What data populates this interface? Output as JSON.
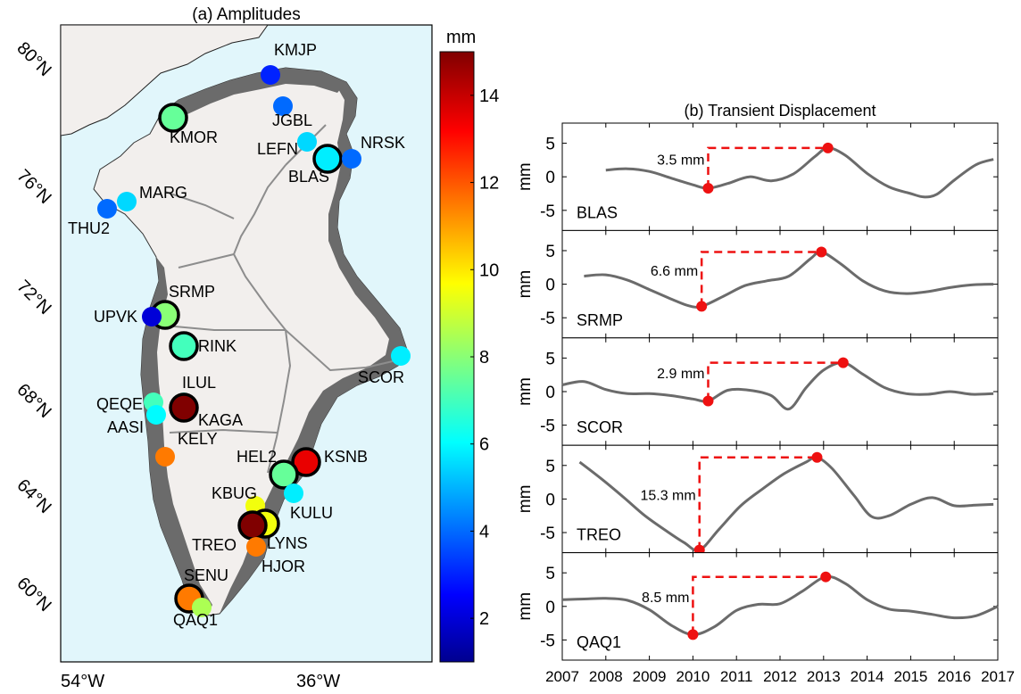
{
  "colors": {
    "ocean": "#e1f6fb",
    "land": "#f2efed",
    "coast_rock": "#6b6b6b",
    "basin_line": "#8d8d8d",
    "series_line": "#6b6b6b",
    "marker": "#ee1111",
    "dash": "#ee1111"
  },
  "chart_data": [
    {
      "type": "map-scatter",
      "title": "(a) Amplitudes",
      "colorbar": {
        "label": "mm",
        "range": [
          1,
          15
        ],
        "ticks": [
          2,
          4,
          6,
          8,
          10,
          12,
          14
        ],
        "colormap": "jet"
      },
      "lat_labels": [
        "80°N",
        "76°N",
        "72°N",
        "68°N",
        "64°N",
        "60°N"
      ],
      "lon_labels": [
        "54°W",
        "36°W"
      ],
      "stations": [
        {
          "name": "KMJP",
          "lat": 79.4,
          "lon": -44.3,
          "amp": 3.0,
          "selected": false
        },
        {
          "name": "JGBL",
          "lat": 78.3,
          "lon": -43.8,
          "amp": 4.0,
          "selected": false
        },
        {
          "name": "KMOR",
          "lat": 78.0,
          "lon": -55.5,
          "amp": 7.5,
          "selected": true
        },
        {
          "name": "LEFN",
          "lat": 77.1,
          "lon": -41.0,
          "amp": 5.5,
          "selected": false
        },
        {
          "name": "BLAS",
          "lat": 76.6,
          "lon": -38.1,
          "amp": 5.8,
          "selected": true
        },
        {
          "name": "NRSK",
          "lat": 76.6,
          "lon": -36.3,
          "amp": 4.0,
          "selected": false
        },
        {
          "name": "MARG",
          "lat": 75.2,
          "lon": -58.8,
          "amp": 5.5,
          "selected": false
        },
        {
          "name": "THU2",
          "lat": 74.9,
          "lon": -60.1,
          "amp": 4.0,
          "selected": false
        },
        {
          "name": "SRMP",
          "lat": 71.3,
          "lon": -56.4,
          "amp": 8.0,
          "selected": true
        },
        {
          "name": "UPVK",
          "lat": 71.3,
          "lon": -57.3,
          "amp": 2.0,
          "selected": false
        },
        {
          "name": "RINK",
          "lat": 70.3,
          "lon": -54.7,
          "amp": 7.0,
          "selected": true
        },
        {
          "name": "SCOR",
          "lat": 69.6,
          "lon": -30.3,
          "amp": 5.8,
          "selected": false
        },
        {
          "name": "ILUL",
          "lat": 68.3,
          "lon": -55.3,
          "amp": 6.5,
          "selected": false
        },
        {
          "name": "KAGA",
          "lat": 67.9,
          "lon": -54.7,
          "amp": 15.0,
          "selected": true
        },
        {
          "name": "QEQE",
          "lat": 68.1,
          "lon": -56.3,
          "amp": 7.0,
          "selected": false
        },
        {
          "name": "AASI",
          "lat": 67.6,
          "lon": -56.1,
          "amp": 6.0,
          "selected": false
        },
        {
          "name": "KELY",
          "lat": 66.2,
          "lon": -55.4,
          "amp": 11.5,
          "selected": false
        },
        {
          "name": "KSNB",
          "lat": 65.9,
          "lon": -38.4,
          "amp": 13.5,
          "selected": true
        },
        {
          "name": "HEL2",
          "lat": 65.4,
          "lon": -40.3,
          "amp": 7.5,
          "selected": true
        },
        {
          "name": "KULU",
          "lat": 64.6,
          "lon": -39.5,
          "amp": 5.8,
          "selected": false
        },
        {
          "name": "KBUG",
          "lat": 64.0,
          "lon": -45.0,
          "amp": 9.5,
          "selected": false
        },
        {
          "name": "LYNS",
          "lat": 63.6,
          "lon": -44.0,
          "amp": 9.5,
          "selected": true
        },
        {
          "name": "TREO",
          "lat": 63.5,
          "lon": -45.2,
          "amp": 15.0,
          "selected": true
        },
        {
          "name": "HJOR",
          "lat": 62.6,
          "lon": -45.6,
          "amp": 11.5,
          "selected": false
        },
        {
          "name": "SENU",
          "lat": 60.2,
          "lon": -50.5,
          "amp": 11.5,
          "selected": true
        },
        {
          "name": "QAQ1",
          "lat": 59.8,
          "lon": -49.6,
          "amp": 8.5,
          "selected": false
        }
      ]
    },
    {
      "type": "line",
      "title": "(b) Transient Displacement",
      "ylabel": "mm",
      "xlim": [
        2007,
        2017
      ],
      "ylim": [
        -8,
        8
      ],
      "yticks": [
        -5,
        0,
        5
      ],
      "xticks": [
        2007,
        2008,
        2009,
        2010,
        2011,
        2012,
        2013,
        2014,
        2015,
        2016,
        2017
      ],
      "panels": [
        {
          "name": "BLAS",
          "annotation": "3.5 mm",
          "x": [
            2008.0,
            2008.5,
            2009.0,
            2009.5,
            2010.0,
            2010.35,
            2010.8,
            2011.3,
            2011.8,
            2012.3,
            2012.8,
            2013.1,
            2013.5,
            2014.0,
            2014.5,
            2015.0,
            2015.3,
            2015.6,
            2016.0,
            2016.5,
            2016.9
          ],
          "y": [
            1.0,
            1.2,
            0.8,
            -0.2,
            -1.2,
            -1.7,
            -1.0,
            0.0,
            -0.6,
            0.4,
            3.0,
            4.3,
            3.2,
            0.5,
            -1.5,
            -2.5,
            -3.0,
            -2.6,
            -0.5,
            1.8,
            2.6
          ],
          "min": [
            2010.35,
            -1.7
          ],
          "max": [
            2013.1,
            4.3
          ]
        },
        {
          "name": "SRMP",
          "annotation": "6.6 mm",
          "x": [
            2007.5,
            2008.0,
            2008.5,
            2009.0,
            2009.5,
            2009.9,
            2010.2,
            2010.7,
            2011.2,
            2011.7,
            2012.2,
            2012.7,
            2012.95,
            2013.4,
            2013.9,
            2014.4,
            2014.9,
            2015.4,
            2015.9,
            2016.4,
            2016.9
          ],
          "y": [
            1.2,
            1.4,
            0.6,
            -0.8,
            -2.2,
            -3.2,
            -3.3,
            -1.8,
            -0.2,
            0.5,
            1.2,
            3.8,
            4.8,
            3.0,
            0.5,
            -1.0,
            -1.4,
            -1.1,
            -0.5,
            -0.1,
            0.0
          ],
          "min": [
            2010.2,
            -3.3
          ],
          "max": [
            2012.95,
            4.8
          ]
        },
        {
          "name": "SCOR",
          "annotation": "2.9 mm",
          "x": [
            2007.0,
            2007.5,
            2008.0,
            2008.5,
            2009.0,
            2009.5,
            2010.0,
            2010.35,
            2010.8,
            2011.3,
            2011.8,
            2012.2,
            2012.6,
            2013.0,
            2013.45,
            2013.9,
            2014.4,
            2014.9,
            2015.4,
            2015.9,
            2016.4,
            2016.9
          ],
          "y": [
            1.0,
            1.5,
            0.3,
            -0.3,
            -0.3,
            -0.6,
            -1.1,
            -1.4,
            0.2,
            0.2,
            -0.6,
            -2.6,
            0.6,
            3.2,
            4.3,
            2.6,
            0.6,
            -0.3,
            -0.4,
            0.0,
            -0.4,
            -0.3
          ],
          "min": [
            2010.35,
            -1.4
          ],
          "max": [
            2013.45,
            4.3
          ]
        },
        {
          "name": "TREO",
          "annotation": "15.3 mm",
          "x": [
            2007.4,
            2007.9,
            2008.4,
            2008.9,
            2009.4,
            2009.8,
            2010.15,
            2010.6,
            2011.1,
            2011.6,
            2012.1,
            2012.6,
            2012.85,
            2013.2,
            2013.7,
            2014.1,
            2014.5,
            2015.0,
            2015.5,
            2016.0,
            2016.5,
            2016.9
          ],
          "y": [
            5.5,
            3.0,
            0.3,
            -2.5,
            -4.8,
            -6.5,
            -7.6,
            -4.5,
            -1.0,
            1.5,
            3.8,
            5.5,
            6.2,
            4.5,
            0.5,
            -2.6,
            -2.5,
            -0.8,
            0.2,
            -1.0,
            -0.9,
            -0.8
          ],
          "min": [
            2010.15,
            -7.6
          ],
          "max": [
            2012.85,
            6.2
          ]
        },
        {
          "name": "QAQ1",
          "annotation": "8.5 mm",
          "x": [
            2007.0,
            2007.5,
            2008.0,
            2008.5,
            2009.0,
            2009.5,
            2010.0,
            2010.5,
            2011.0,
            2011.5,
            2012.0,
            2012.5,
            2013.05,
            2013.5,
            2014.0,
            2014.5,
            2015.0,
            2015.5,
            2016.0,
            2016.5,
            2017.0
          ],
          "y": [
            1.0,
            1.1,
            1.2,
            0.9,
            -0.5,
            -2.8,
            -4.2,
            -3.0,
            -0.6,
            0.3,
            0.4,
            2.2,
            4.4,
            3.4,
            1.0,
            -0.4,
            -0.7,
            -1.2,
            -1.7,
            -1.4,
            0.0
          ],
          "min": [
            2010.0,
            -4.2
          ],
          "max": [
            2013.05,
            4.4
          ]
        }
      ]
    }
  ]
}
